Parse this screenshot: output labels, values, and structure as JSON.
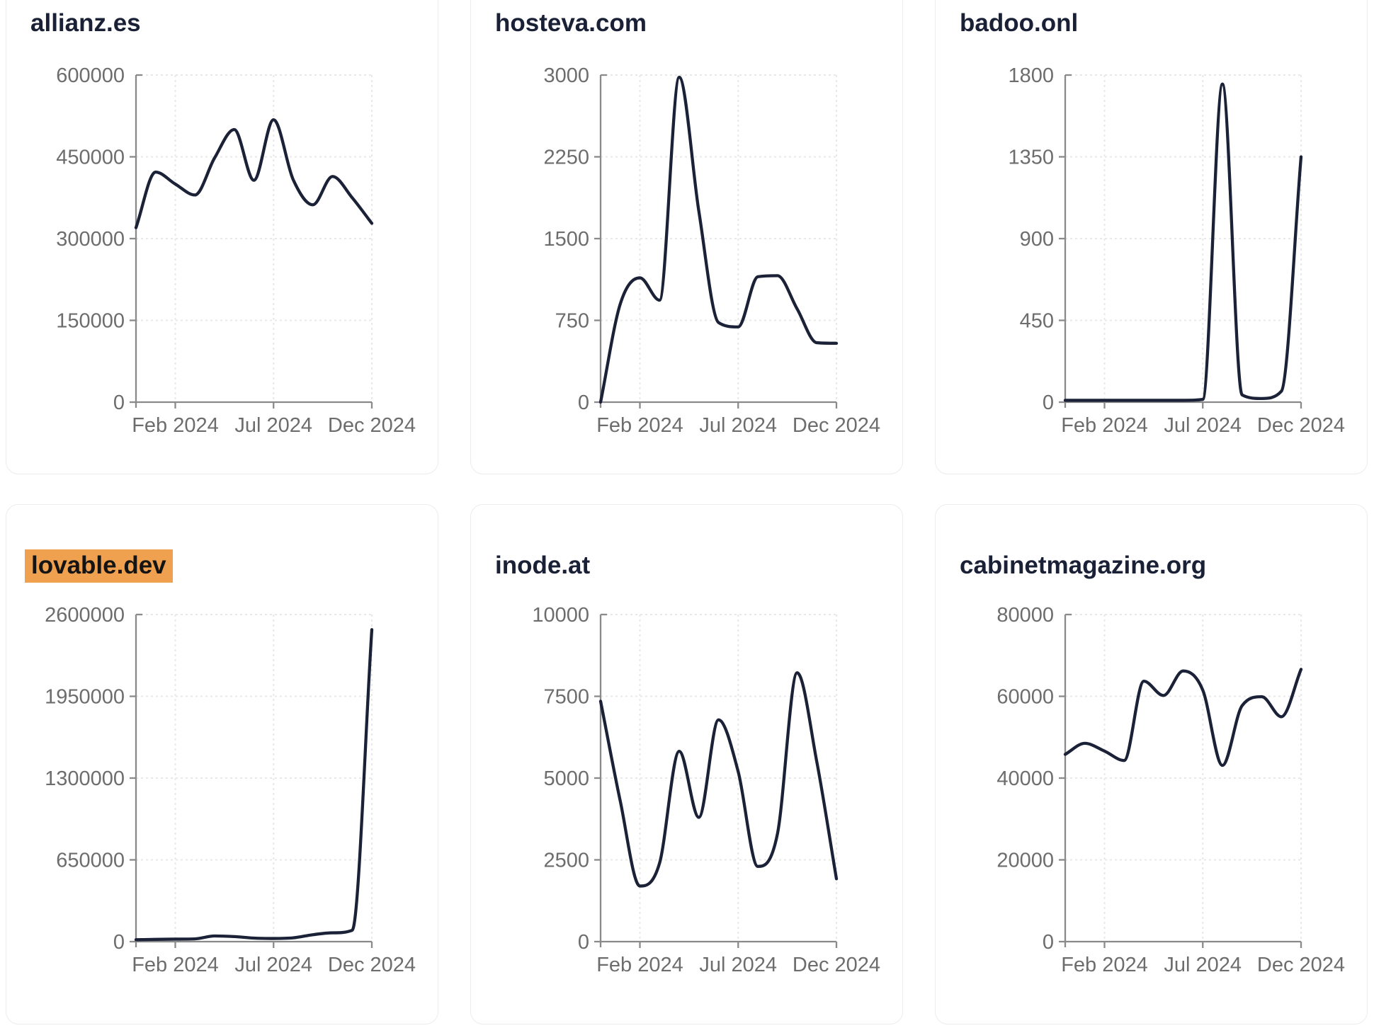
{
  "page": {
    "background": "#ffffff"
  },
  "style": {
    "line_color": "#1b2136",
    "title_color": "#1a2136",
    "highlight_bg": "#f0a14f",
    "highlight_text": "#141414",
    "axis_color": "#8a8a8a",
    "tick_label_color": "#6d6d6d",
    "grid_color": "#e8e8e8",
    "card_border": "#ececec",
    "card_bg": "#ffffff"
  },
  "x_axis": {
    "tick_labels": [
      "Feb 2024",
      "Jul 2024",
      "Dec 2024"
    ],
    "tick_month_index": [
      2,
      7,
      12
    ]
  },
  "chart_data": [
    {
      "type": "line",
      "title": "allianz.es",
      "highlighted": false,
      "x": [
        "Dec 2023",
        "Jan 2024",
        "Feb 2024",
        "Mar 2024",
        "Apr 2024",
        "May 2024",
        "Jun 2024",
        "Jul 2024",
        "Aug 2024",
        "Sep 2024",
        "Oct 2024",
        "Nov 2024",
        "Dec 2024"
      ],
      "values": [
        320000,
        422000,
        400000,
        380000,
        448000,
        500000,
        407000,
        518000,
        408000,
        362000,
        414000,
        375000,
        328000
      ],
      "y_ticks": [
        0,
        150000,
        300000,
        450000,
        600000
      ],
      "ylim": [
        0,
        600000
      ],
      "x_tick_labels": [
        "Feb 2024",
        "Jul 2024",
        "Dec 2024"
      ],
      "x_tick_positions": [
        2,
        7,
        12
      ],
      "grid": "dashed",
      "legend": "none"
    },
    {
      "type": "line",
      "title": "hosteva.com",
      "highlighted": false,
      "x": [
        "Dec 2023",
        "Jan 2024",
        "Feb 2024",
        "Mar 2024",
        "Apr 2024",
        "May 2024",
        "Jun 2024",
        "Jul 2024",
        "Aug 2024",
        "Sep 2024",
        "Oct 2024",
        "Nov 2024",
        "Dec 2024"
      ],
      "values": [
        0,
        900,
        1140,
        935,
        2980,
        1750,
        730,
        690,
        1150,
        1160,
        855,
        545,
        540
      ],
      "y_ticks": [
        0,
        750,
        1500,
        2250,
        3000
      ],
      "ylim": [
        0,
        3000
      ],
      "x_tick_labels": [
        "Feb 2024",
        "Jul 2024",
        "Dec 2024"
      ],
      "x_tick_positions": [
        2,
        7,
        12
      ],
      "grid": "dashed",
      "legend": "none"
    },
    {
      "type": "line",
      "title": "badoo.onl",
      "highlighted": false,
      "x": [
        "Dec 2023",
        "Jan 2024",
        "Feb 2024",
        "Mar 2024",
        "Apr 2024",
        "May 2024",
        "Jun 2024",
        "Jul 2024",
        "Aug 2024",
        "Sep 2024",
        "Oct 2024",
        "Nov 2024",
        "Dec 2024"
      ],
      "values": [
        10,
        10,
        10,
        10,
        10,
        10,
        10,
        15,
        1750,
        40,
        20,
        60,
        1350
      ],
      "y_ticks": [
        0,
        450,
        900,
        1350,
        1800
      ],
      "ylim": [
        0,
        1800
      ],
      "x_tick_labels": [
        "Feb 2024",
        "Jul 2024",
        "Dec 2024"
      ],
      "x_tick_positions": [
        2,
        7,
        12
      ],
      "grid": "dashed",
      "legend": "none"
    },
    {
      "type": "line",
      "title": "lovable.dev",
      "highlighted": true,
      "x": [
        "Dec 2023",
        "Jan 2024",
        "Feb 2024",
        "Mar 2024",
        "Apr 2024",
        "May 2024",
        "Jun 2024",
        "Jul 2024",
        "Aug 2024",
        "Sep 2024",
        "Oct 2024",
        "Nov 2024",
        "Dec 2024"
      ],
      "values": [
        15000,
        18000,
        20000,
        22000,
        45000,
        40000,
        28000,
        25000,
        30000,
        55000,
        70000,
        90000,
        2480000
      ],
      "y_ticks": [
        0,
        650000,
        1300000,
        1950000,
        2600000
      ],
      "ylim": [
        0,
        2600000
      ],
      "x_tick_labels": [
        "Feb 2024",
        "Jul 2024",
        "Dec 2024"
      ],
      "x_tick_positions": [
        2,
        7,
        12
      ],
      "grid": "dashed",
      "legend": "none"
    },
    {
      "type": "line",
      "title": "inode.at",
      "highlighted": false,
      "x": [
        "Dec 2023",
        "Jan 2024",
        "Feb 2024",
        "Mar 2024",
        "Apr 2024",
        "May 2024",
        "Jun 2024",
        "Jul 2024",
        "Aug 2024",
        "Sep 2024",
        "Oct 2024",
        "Nov 2024",
        "Dec 2024"
      ],
      "values": [
        7350,
        4300,
        1700,
        2400,
        5820,
        3800,
        6780,
        5200,
        2300,
        3300,
        8220,
        5500,
        1920
      ],
      "y_ticks": [
        0,
        2500,
        5000,
        7500,
        10000
      ],
      "ylim": [
        0,
        10000
      ],
      "x_tick_labels": [
        "Feb 2024",
        "Jul 2024",
        "Dec 2024"
      ],
      "x_tick_positions": [
        2,
        7,
        12
      ],
      "grid": "dashed",
      "legend": "none"
    },
    {
      "type": "line",
      "title": "cabinetmagazine.org",
      "highlighted": false,
      "x": [
        "Dec 2023",
        "Jan 2024",
        "Feb 2024",
        "Mar 2024",
        "Apr 2024",
        "May 2024",
        "Jun 2024",
        "Jul 2024",
        "Aug 2024",
        "Sep 2024",
        "Oct 2024",
        "Nov 2024",
        "Dec 2024"
      ],
      "values": [
        45800,
        48500,
        46600,
        44300,
        63700,
        60200,
        66200,
        61500,
        43100,
        57700,
        59900,
        55000,
        66600
      ],
      "y_ticks": [
        0,
        20000,
        40000,
        60000,
        80000
      ],
      "ylim": [
        0,
        80000
      ],
      "x_tick_labels": [
        "Feb 2024",
        "Jul 2024",
        "Dec 2024"
      ],
      "x_tick_positions": [
        2,
        7,
        12
      ],
      "grid": "dashed",
      "legend": "none"
    }
  ]
}
